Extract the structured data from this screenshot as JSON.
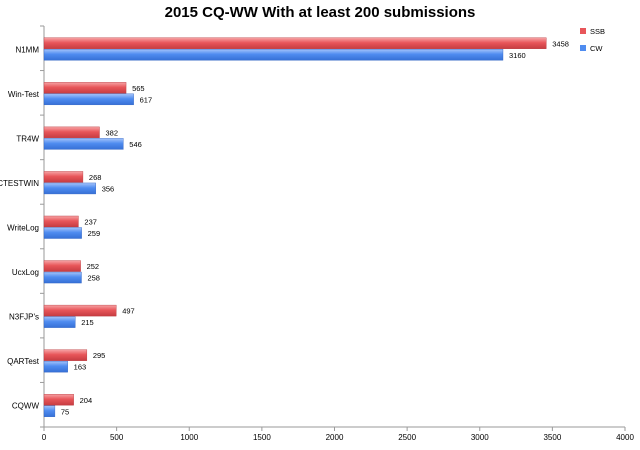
{
  "chart_data": {
    "type": "bar",
    "orientation": "horizontal",
    "title": "2015 CQ-WW  With at least 200 submissions",
    "categories": [
      "N1MM",
      "Win-Test",
      "TR4W",
      "CTESTWIN",
      "WriteLog",
      "UcxLog",
      "N3FJP's",
      "QARTest",
      "CQWW"
    ],
    "series": [
      {
        "name": "SSB",
        "color": "#e8565a",
        "values": [
          3458,
          565,
          382,
          268,
          237,
          252,
          497,
          295,
          204
        ]
      },
      {
        "name": "CW",
        "color": "#4f8cf0",
        "values": [
          3160,
          617,
          546,
          356,
          259,
          258,
          215,
          163,
          75
        ]
      }
    ],
    "xlim": [
      0,
      4000
    ],
    "x_ticks": [
      0,
      500,
      1000,
      1500,
      2000,
      2500,
      3000,
      3500,
      4000
    ],
    "grid": false,
    "legend_position": "top-right"
  }
}
